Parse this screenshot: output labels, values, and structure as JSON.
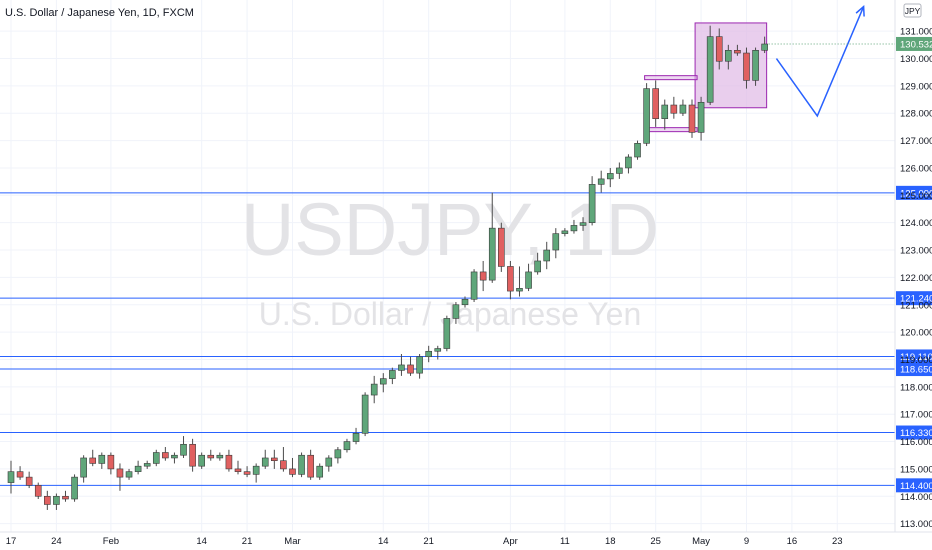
{
  "chart_data": {
    "type": "candlestick",
    "title": "U.S. Dollar / Japanese Yen, 1D, FXCM",
    "watermark": {
      "symbol": "USDJPY, 1D",
      "name": "U.S. Dollar / Japanese Yen"
    },
    "currency_label": "JPY",
    "ylim": [
      113.0,
      132.0
    ],
    "y_ticks": [
      113,
      114,
      115,
      116,
      117,
      118,
      119,
      120,
      121,
      122,
      123,
      124,
      125,
      126,
      127,
      128,
      129,
      130,
      131
    ],
    "y_tick_labels": [
      "113.000",
      "114.000",
      "115.000",
      "116.000",
      "117.000",
      "118.000",
      "119.000",
      "120.000",
      "121.000",
      "122.000",
      "123.000",
      "124.000",
      "125.000",
      "126.000",
      "127.000",
      "128.000",
      "129.000",
      "130.000",
      "131.000"
    ],
    "x_ticks": [
      {
        "label": "17",
        "index": 0
      },
      {
        "label": "24",
        "index": 5
      },
      {
        "label": "Feb",
        "index": 11
      },
      {
        "label": "14",
        "index": 21
      },
      {
        "label": "21",
        "index": 26
      },
      {
        "label": "Mar",
        "index": 31
      },
      {
        "label": "14",
        "index": 41
      },
      {
        "label": "21",
        "index": 46
      },
      {
        "label": "Apr",
        "index": 55
      },
      {
        "label": "11",
        "index": 61
      },
      {
        "label": "18",
        "index": 66
      },
      {
        "label": "25",
        "index": 71
      },
      {
        "label": "May",
        "index": 76
      },
      {
        "label": "9",
        "index": 81
      },
      {
        "label": "16",
        "index": 86
      },
      {
        "label": "23",
        "index": 91
      }
    ],
    "candles": [
      {
        "o": 114.5,
        "h": 115.3,
        "l": 114.1,
        "c": 114.9
      },
      {
        "o": 114.9,
        "h": 115.1,
        "l": 114.6,
        "c": 114.7
      },
      {
        "o": 114.7,
        "h": 114.9,
        "l": 114.3,
        "c": 114.4
      },
      {
        "o": 114.4,
        "h": 114.5,
        "l": 113.9,
        "c": 114.0
      },
      {
        "o": 114.0,
        "h": 114.2,
        "l": 113.5,
        "c": 113.7
      },
      {
        "o": 113.7,
        "h": 114.1,
        "l": 113.5,
        "c": 114.0
      },
      {
        "o": 114.0,
        "h": 114.2,
        "l": 113.8,
        "c": 113.9
      },
      {
        "o": 113.9,
        "h": 114.8,
        "l": 113.8,
        "c": 114.7
      },
      {
        "o": 114.7,
        "h": 115.5,
        "l": 114.5,
        "c": 115.4
      },
      {
        "o": 115.4,
        "h": 115.7,
        "l": 115.1,
        "c": 115.2
      },
      {
        "o": 115.2,
        "h": 115.6,
        "l": 115.0,
        "c": 115.5
      },
      {
        "o": 115.5,
        "h": 115.6,
        "l": 114.8,
        "c": 115.0
      },
      {
        "o": 115.0,
        "h": 115.2,
        "l": 114.2,
        "c": 114.7
      },
      {
        "o": 114.7,
        "h": 115.0,
        "l": 114.6,
        "c": 114.9
      },
      {
        "o": 114.9,
        "h": 115.3,
        "l": 114.8,
        "c": 115.1
      },
      {
        "o": 115.1,
        "h": 115.3,
        "l": 115.0,
        "c": 115.2
      },
      {
        "o": 115.2,
        "h": 115.7,
        "l": 115.1,
        "c": 115.6
      },
      {
        "o": 115.6,
        "h": 115.8,
        "l": 115.3,
        "c": 115.4
      },
      {
        "o": 115.4,
        "h": 115.6,
        "l": 115.2,
        "c": 115.5
      },
      {
        "o": 115.5,
        "h": 116.2,
        "l": 115.4,
        "c": 115.9
      },
      {
        "o": 115.9,
        "h": 116.1,
        "l": 114.9,
        "c": 115.1
      },
      {
        "o": 115.1,
        "h": 115.6,
        "l": 115.0,
        "c": 115.5
      },
      {
        "o": 115.5,
        "h": 115.7,
        "l": 115.3,
        "c": 115.4
      },
      {
        "o": 115.4,
        "h": 115.6,
        "l": 115.3,
        "c": 115.5
      },
      {
        "o": 115.5,
        "h": 115.7,
        "l": 114.9,
        "c": 115.0
      },
      {
        "o": 115.0,
        "h": 115.3,
        "l": 114.8,
        "c": 114.9
      },
      {
        "o": 114.9,
        "h": 115.1,
        "l": 114.7,
        "c": 114.8
      },
      {
        "o": 114.8,
        "h": 115.2,
        "l": 114.5,
        "c": 115.1
      },
      {
        "o": 115.1,
        "h": 115.7,
        "l": 115.0,
        "c": 115.4
      },
      {
        "o": 115.4,
        "h": 115.7,
        "l": 115.0,
        "c": 115.3
      },
      {
        "o": 115.3,
        "h": 115.8,
        "l": 114.9,
        "c": 115.0
      },
      {
        "o": 115.0,
        "h": 115.4,
        "l": 114.7,
        "c": 114.8
      },
      {
        "o": 114.8,
        "h": 115.6,
        "l": 114.7,
        "c": 115.5
      },
      {
        "o": 115.5,
        "h": 115.7,
        "l": 114.6,
        "c": 114.7
      },
      {
        "o": 114.7,
        "h": 115.2,
        "l": 114.6,
        "c": 115.1
      },
      {
        "o": 115.1,
        "h": 115.5,
        "l": 114.9,
        "c": 115.4
      },
      {
        "o": 115.4,
        "h": 115.8,
        "l": 115.2,
        "c": 115.7
      },
      {
        "o": 115.7,
        "h": 116.1,
        "l": 115.6,
        "c": 116.0
      },
      {
        "o": 116.0,
        "h": 116.5,
        "l": 115.9,
        "c": 116.3
      },
      {
        "o": 116.3,
        "h": 117.8,
        "l": 116.2,
        "c": 117.7
      },
      {
        "o": 117.7,
        "h": 118.4,
        "l": 117.4,
        "c": 118.1
      },
      {
        "o": 118.1,
        "h": 118.5,
        "l": 117.8,
        "c": 118.3
      },
      {
        "o": 118.3,
        "h": 118.7,
        "l": 118.1,
        "c": 118.6
      },
      {
        "o": 118.6,
        "h": 119.2,
        "l": 118.4,
        "c": 118.8
      },
      {
        "o": 118.8,
        "h": 119.1,
        "l": 118.4,
        "c": 118.5
      },
      {
        "o": 118.5,
        "h": 119.2,
        "l": 118.3,
        "c": 119.1
      },
      {
        "o": 119.1,
        "h": 119.5,
        "l": 118.9,
        "c": 119.3
      },
      {
        "o": 119.3,
        "h": 119.5,
        "l": 119.0,
        "c": 119.4
      },
      {
        "o": 119.4,
        "h": 120.6,
        "l": 119.3,
        "c": 120.5
      },
      {
        "o": 120.5,
        "h": 121.1,
        "l": 120.3,
        "c": 121.0
      },
      {
        "o": 121.0,
        "h": 121.3,
        "l": 120.9,
        "c": 121.2
      },
      {
        "o": 121.2,
        "h": 122.3,
        "l": 121.1,
        "c": 122.2
      },
      {
        "o": 122.2,
        "h": 122.6,
        "l": 121.5,
        "c": 121.9
      },
      {
        "o": 121.9,
        "h": 125.1,
        "l": 121.8,
        "c": 123.8
      },
      {
        "o": 123.8,
        "h": 124.0,
        "l": 122.2,
        "c": 122.4
      },
      {
        "o": 122.4,
        "h": 122.6,
        "l": 121.2,
        "c": 121.5
      },
      {
        "o": 121.5,
        "h": 122.4,
        "l": 121.3,
        "c": 121.6
      },
      {
        "o": 121.6,
        "h": 122.5,
        "l": 121.5,
        "c": 122.2
      },
      {
        "o": 122.2,
        "h": 122.9,
        "l": 122.1,
        "c": 122.6
      },
      {
        "o": 122.6,
        "h": 123.3,
        "l": 122.3,
        "c": 123.0
      },
      {
        "o": 123.0,
        "h": 123.8,
        "l": 122.7,
        "c": 123.6
      },
      {
        "o": 123.6,
        "h": 123.8,
        "l": 123.5,
        "c": 123.7
      },
      {
        "o": 123.7,
        "h": 124.1,
        "l": 123.6,
        "c": 123.9
      },
      {
        "o": 123.9,
        "h": 124.2,
        "l": 123.7,
        "c": 124.0
      },
      {
        "o": 124.0,
        "h": 125.7,
        "l": 123.9,
        "c": 125.4
      },
      {
        "o": 125.4,
        "h": 125.9,
        "l": 125.1,
        "c": 125.6
      },
      {
        "o": 125.6,
        "h": 126.0,
        "l": 125.3,
        "c": 125.8
      },
      {
        "o": 125.8,
        "h": 126.2,
        "l": 125.6,
        "c": 126.0
      },
      {
        "o": 126.0,
        "h": 126.5,
        "l": 125.8,
        "c": 126.4
      },
      {
        "o": 126.4,
        "h": 127.0,
        "l": 126.3,
        "c": 126.9
      },
      {
        "o": 126.9,
        "h": 129.1,
        "l": 126.8,
        "c": 128.9
      },
      {
        "o": 128.9,
        "h": 129.2,
        "l": 127.5,
        "c": 127.8
      },
      {
        "o": 127.8,
        "h": 128.5,
        "l": 127.4,
        "c": 128.3
      },
      {
        "o": 128.3,
        "h": 128.6,
        "l": 127.8,
        "c": 128.0
      },
      {
        "o": 128.0,
        "h": 128.5,
        "l": 127.9,
        "c": 128.3
      },
      {
        "o": 128.3,
        "h": 128.5,
        "l": 127.1,
        "c": 127.3
      },
      {
        "o": 127.3,
        "h": 128.6,
        "l": 127.0,
        "c": 128.4
      },
      {
        "o": 128.4,
        "h": 131.2,
        "l": 128.3,
        "c": 130.8
      },
      {
        "o": 130.8,
        "h": 131.1,
        "l": 129.6,
        "c": 129.9
      },
      {
        "o": 129.9,
        "h": 130.5,
        "l": 129.6,
        "c": 130.3
      },
      {
        "o": 130.3,
        "h": 130.5,
        "l": 130.1,
        "c": 130.2
      },
      {
        "o": 130.2,
        "h": 130.4,
        "l": 128.9,
        "c": 129.2
      },
      {
        "o": 129.2,
        "h": 130.4,
        "l": 129.0,
        "c": 130.3
      },
      {
        "o": 130.3,
        "h": 130.8,
        "l": 130.2,
        "c": 130.53
      }
    ],
    "last_index_offset_note": "",
    "horizontal_levels": [
      {
        "value": 125.09,
        "label": "125.090"
      },
      {
        "value": 121.24,
        "label": "121.240"
      },
      {
        "value": 119.11,
        "label": "119.110"
      },
      {
        "value": 118.65,
        "label": "118.650"
      },
      {
        "value": 116.33,
        "label": "116.330"
      },
      {
        "value": 114.4,
        "label": "114.400"
      }
    ],
    "current_price": {
      "value": 130.532,
      "label": "130.532"
    },
    "annotations": {
      "range_box": {
        "from_index": 76,
        "to_index": 83,
        "top": 131.3,
        "bottom": 128.2
      },
      "zone_lines": [
        {
          "from_index": 70,
          "to_index": 76,
          "value": 129.3
        },
        {
          "from_index": 70,
          "to_index": 76,
          "value": 127.4
        }
      ],
      "projection_path": [
        {
          "index": 84.3,
          "value": 130.0
        },
        {
          "index": 88.8,
          "value": 127.9
        },
        {
          "index": 93.9,
          "value": 131.9
        }
      ]
    },
    "colors": {
      "up": "#26a69a",
      "up_fill": "#5fa67a",
      "down": "#e06060",
      "level_line": "#2962ff",
      "badge_bg": "#2962ff",
      "box_fill": "#e1bee7",
      "box_stroke": "#9c27b0",
      "arrow": "#2962ff"
    }
  }
}
